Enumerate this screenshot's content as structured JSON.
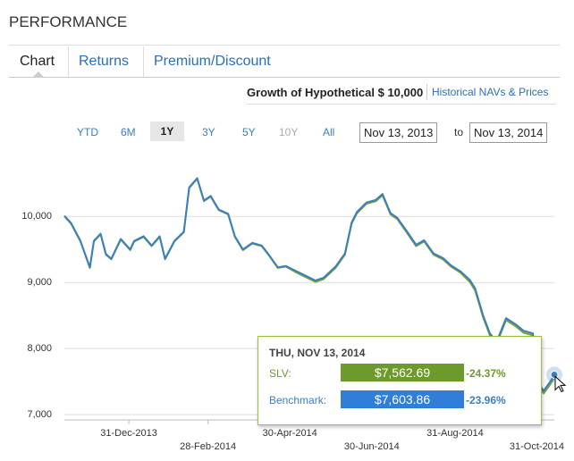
{
  "header": {
    "title": "PERFORMANCE"
  },
  "tabs": [
    "Chart",
    "Returns",
    "Premium/Discount"
  ],
  "subtabs": [
    "Growth of Hypothetical $ 10,000",
    "Historical NAVs & Prices"
  ],
  "ranges": [
    "YTD",
    "6M",
    "1Y",
    "3Y",
    "5Y",
    "10Y",
    "All"
  ],
  "date_range": {
    "from": "Nov 13, 2013",
    "separator": "to",
    "to": "Nov 13, 2014"
  },
  "chart_data": {
    "type": "line",
    "x": [
      "2013-11-13",
      "2013-11-18",
      "2013-11-25",
      "2013-12-02",
      "2013-12-05",
      "2013-12-10",
      "2013-12-14",
      "2013-12-18",
      "2013-12-25",
      "2014-01-01",
      "2014-01-04",
      "2014-01-11",
      "2014-01-17",
      "2014-01-23",
      "2014-01-27",
      "2014-02-03",
      "2014-02-10",
      "2014-02-14",
      "2014-02-20",
      "2014-02-25",
      "2014-03-02",
      "2014-03-08",
      "2014-03-15",
      "2014-03-20",
      "2014-03-26",
      "2014-04-02",
      "2014-04-09",
      "2014-04-14",
      "2014-04-21",
      "2014-04-27",
      "2014-05-05",
      "2014-05-12",
      "2014-05-19",
      "2014-05-25",
      "2014-06-03",
      "2014-06-10",
      "2014-06-15",
      "2014-06-19",
      "2014-06-26",
      "2014-07-03",
      "2014-07-08",
      "2014-07-14",
      "2014-07-19",
      "2014-07-26",
      "2014-08-02",
      "2014-08-08",
      "2014-08-15",
      "2014-08-22",
      "2014-08-28",
      "2014-09-04",
      "2014-09-11",
      "2014-09-15",
      "2014-09-21",
      "2014-09-26",
      "2014-10-01",
      "2014-10-08",
      "2014-10-15",
      "2014-10-21",
      "2014-10-28",
      "2014-11-01",
      "2014-11-05",
      "2014-11-10",
      "2014-11-13"
    ],
    "series": [
      {
        "name": "SLV:",
        "color": "#7aa22e",
        "values": [
          10000,
          9890,
          9620,
          9220,
          9620,
          9730,
          9420,
          9350,
          9650,
          9490,
          9620,
          9690,
          9550,
          9690,
          9350,
          9620,
          9760,
          10430,
          10570,
          10230,
          10300,
          10095,
          10030,
          9690,
          9490,
          9590,
          9550,
          9420,
          9220,
          9240,
          9150,
          9080,
          9010,
          9050,
          9220,
          9420,
          9890,
          10050,
          10190,
          10230,
          10320,
          10030,
          9960,
          9760,
          9550,
          9620,
          9420,
          9350,
          9240,
          9150,
          9010,
          8880,
          8470,
          8200,
          8070,
          8430,
          8340,
          8240,
          8200,
          7460,
          7320,
          7460,
          7562.69
        ]
      },
      {
        "name": "Benchmark:",
        "color": "#3a7fc1",
        "values": [
          10010,
          9900,
          9630,
          9230,
          9630,
          9740,
          9430,
          9360,
          9660,
          9500,
          9630,
          9700,
          9560,
          9700,
          9360,
          9630,
          9770,
          10440,
          10580,
          10240,
          10310,
          10105,
          10040,
          9700,
          9500,
          9600,
          9560,
          9430,
          9230,
          9250,
          9170,
          9100,
          9030,
          9070,
          9240,
          9440,
          9910,
          10070,
          10210,
          10250,
          10340,
          10050,
          9980,
          9780,
          9570,
          9640,
          9440,
          9370,
          9260,
          9170,
          9040,
          8910,
          8500,
          8230,
          8100,
          8460,
          8370,
          8270,
          8230,
          7490,
          7360,
          7500,
          7603.86
        ]
      }
    ],
    "xlim": [
      "2013-11-13",
      "2014-11-13"
    ],
    "xticks": [
      {
        "value": "2013-12-31",
        "label": "31-Dec-2013"
      },
      {
        "value": "2014-02-28",
        "label": "28-Feb-2014"
      },
      {
        "value": "2014-04-30",
        "label": "30-Apr-2014"
      },
      {
        "value": "2014-06-30",
        "label": "30-Jun-2014"
      },
      {
        "value": "2014-08-31",
        "label": "31-Aug-2014"
      },
      {
        "value": "2014-10-31",
        "label": "31-Oct-2014"
      }
    ],
    "ylim": [
      6920,
      10950
    ],
    "yticks": [
      {
        "value": 7000,
        "label": "7,000"
      },
      {
        "value": 8000,
        "label": "8,000"
      },
      {
        "value": 9000,
        "label": "9,000"
      },
      {
        "value": 10000,
        "label": "10,000"
      }
    ],
    "grid": true,
    "tooltip": {
      "date": "THU, NOV 13, 2014",
      "rows": [
        {
          "value": "$7,562.69",
          "change": "-24.37%"
        },
        {
          "value": "$7,603.86",
          "change": "-23.96%"
        }
      ]
    }
  }
}
